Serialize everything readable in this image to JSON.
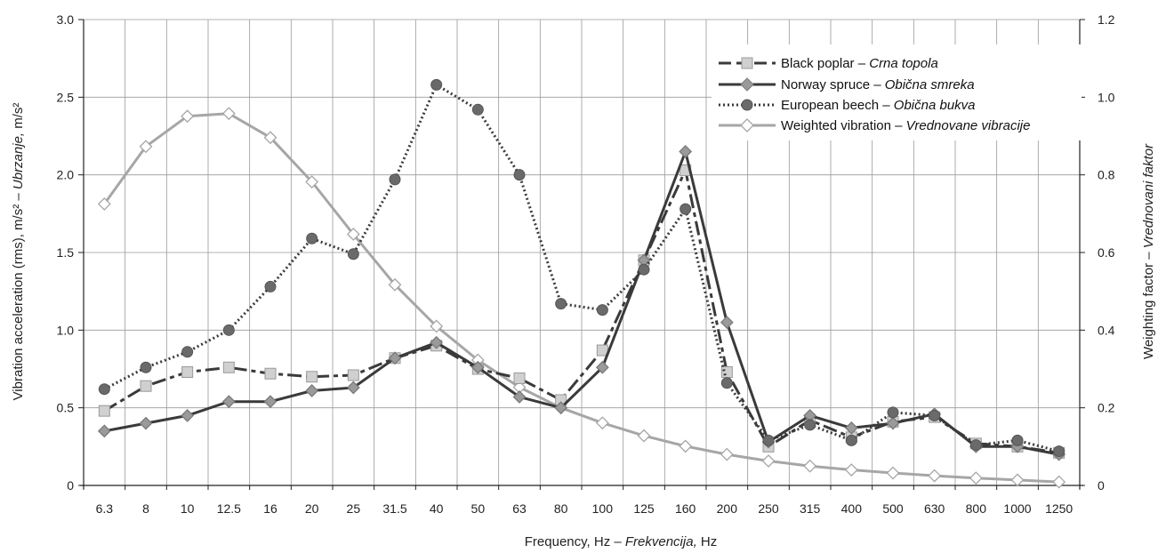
{
  "chart_data": {
    "type": "line",
    "categories": [
      "6.3",
      "8",
      "10",
      "12.5",
      "16",
      "20",
      "25",
      "31.5",
      "40",
      "50",
      "63",
      "80",
      "100",
      "125",
      "160",
      "200",
      "250",
      "315",
      "400",
      "500",
      "630",
      "800",
      "1000",
      "1250"
    ],
    "xlabel": {
      "main": "Frequency, Hz – ",
      "italic": "Frekvencija,",
      "tail": " Hz"
    },
    "ylabel": {
      "main": "Vibration acceleration (rms), m/s² – ",
      "italic": "Ubrzanje,",
      "tail": " m/s²"
    },
    "y2label": {
      "main": "Weighting factor – ",
      "italic": "Vrednovani faktor",
      "tail": ""
    },
    "ylim": [
      0,
      3.0
    ],
    "y_ticks": [
      "0",
      "0.5",
      "1.0",
      "1.5",
      "2.0",
      "2.5",
      "3.0"
    ],
    "y_tick_values": [
      0,
      0.5,
      1.0,
      1.5,
      2.0,
      2.5,
      3.0
    ],
    "y2lim": [
      0,
      1.2
    ],
    "y2_ticks": [
      "0",
      "0.2",
      "0.4",
      "0.6",
      "0.8",
      "1.0",
      "1.2"
    ],
    "y2_tick_values": [
      0,
      0.2,
      0.4,
      0.6,
      0.8,
      1.0,
      1.2
    ],
    "grid": true,
    "legend_position": "top-right",
    "series": [
      {
        "name": "Black poplar – ",
        "name_italic": "Crna topola",
        "axis": "left",
        "style": "dashdot",
        "marker": "square",
        "color": "#3a3a3a",
        "marker_fill": "#d0d0d0",
        "marker_stroke": "#9a9a9a",
        "values": [
          0.48,
          0.64,
          0.73,
          0.76,
          0.72,
          0.7,
          0.71,
          0.82,
          0.9,
          0.75,
          0.69,
          0.55,
          0.87,
          1.45,
          2.03,
          0.73,
          0.25,
          0.42,
          0.31,
          0.41,
          0.44,
          0.27,
          0.25,
          0.21
        ]
      },
      {
        "name": "Norway spruce – ",
        "name_italic": "Obična smreka",
        "axis": "left",
        "style": "solid",
        "marker": "diamond",
        "color": "#3a3a3a",
        "marker_fill": "#9a9a9a",
        "marker_stroke": "#7a7a7a",
        "values": [
          0.35,
          0.4,
          0.45,
          0.54,
          0.54,
          0.61,
          0.63,
          0.82,
          0.92,
          0.76,
          0.57,
          0.5,
          0.76,
          1.45,
          2.15,
          1.05,
          0.28,
          0.45,
          0.37,
          0.4,
          0.46,
          0.25,
          0.25,
          0.2
        ]
      },
      {
        "name": "European beech – ",
        "name_italic": "Obična bukva",
        "axis": "left",
        "style": "dotted",
        "marker": "circle",
        "color": "#3a3a3a",
        "marker_fill": "#6a6a6a",
        "marker_stroke": "#555555",
        "values": [
          0.62,
          0.76,
          0.86,
          1.0,
          1.28,
          1.59,
          1.49,
          1.97,
          2.58,
          2.42,
          2.0,
          1.17,
          1.13,
          1.39,
          1.78,
          0.66,
          0.29,
          0.39,
          0.29,
          0.47,
          0.45,
          0.26,
          0.29,
          0.22
        ]
      },
      {
        "name": "Weighted vibration – ",
        "name_italic": "Vrednovane vibracije",
        "axis": "right",
        "style": "solid",
        "marker": "diamond-open",
        "color": "#a6a6a6",
        "marker_fill": "#ffffff",
        "marker_stroke": "#a6a6a6",
        "values": [
          0.725,
          0.873,
          0.951,
          0.958,
          0.896,
          0.782,
          0.647,
          0.517,
          0.41,
          0.323,
          0.253,
          0.2,
          0.161,
          0.128,
          0.101,
          0.08,
          0.063,
          0.05,
          0.04,
          0.032,
          0.025,
          0.019,
          0.014,
          0.009
        ]
      }
    ]
  }
}
